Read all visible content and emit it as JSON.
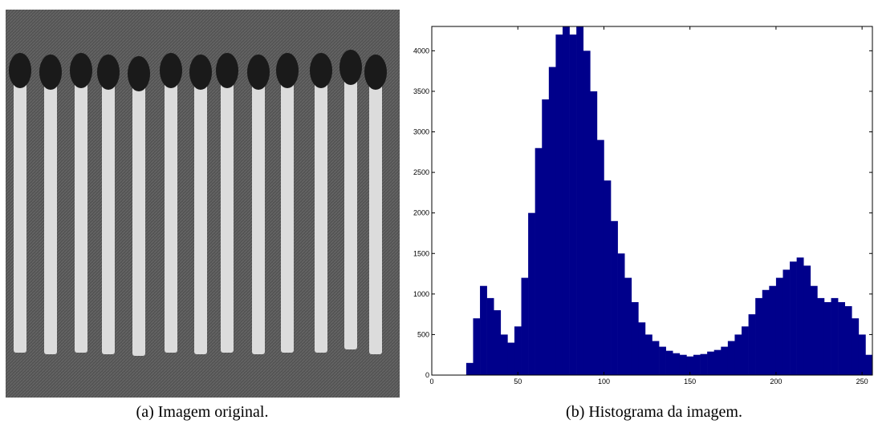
{
  "image_caption": "(a) Imagem original.",
  "chart_data": {
    "type": "histogram",
    "caption": "(b) Histograma da imagem.",
    "bins": [
      0,
      4,
      8,
      12,
      16,
      20,
      24,
      28,
      32,
      36,
      40,
      44,
      48,
      52,
      56,
      60,
      64,
      68,
      72,
      76,
      80,
      84,
      88,
      92,
      96,
      100,
      104,
      108,
      112,
      116,
      120,
      124,
      128,
      132,
      136,
      140,
      144,
      148,
      152,
      156,
      160,
      164,
      168,
      172,
      176,
      180,
      184,
      188,
      192,
      196,
      200,
      204,
      208,
      212,
      216,
      220,
      224,
      228,
      232,
      236,
      240,
      244,
      248,
      252,
      256
    ],
    "values": [
      0,
      0,
      0,
      0,
      0,
      150,
      700,
      1100,
      950,
      800,
      500,
      400,
      600,
      1200,
      2000,
      2800,
      3400,
      3800,
      4200,
      4300,
      4200,
      4300,
      4000,
      3500,
      2900,
      2400,
      1900,
      1500,
      1200,
      900,
      650,
      500,
      420,
      350,
      300,
      270,
      250,
      230,
      250,
      260,
      290,
      310,
      350,
      420,
      500,
      600,
      750,
      950,
      1050,
      1100,
      1200,
      1300,
      1400,
      1450,
      1350,
      1100,
      950,
      900,
      950,
      900,
      850,
      700,
      500,
      250
    ],
    "color": "#00008b",
    "xlim": [
      0,
      256
    ],
    "ylim": [
      0,
      4300
    ],
    "xticks": [
      0,
      50,
      100,
      150,
      200,
      250
    ],
    "yticks": [
      0,
      500,
      1000,
      1500,
      2000,
      2500,
      3000,
      3500,
      4000
    ]
  }
}
